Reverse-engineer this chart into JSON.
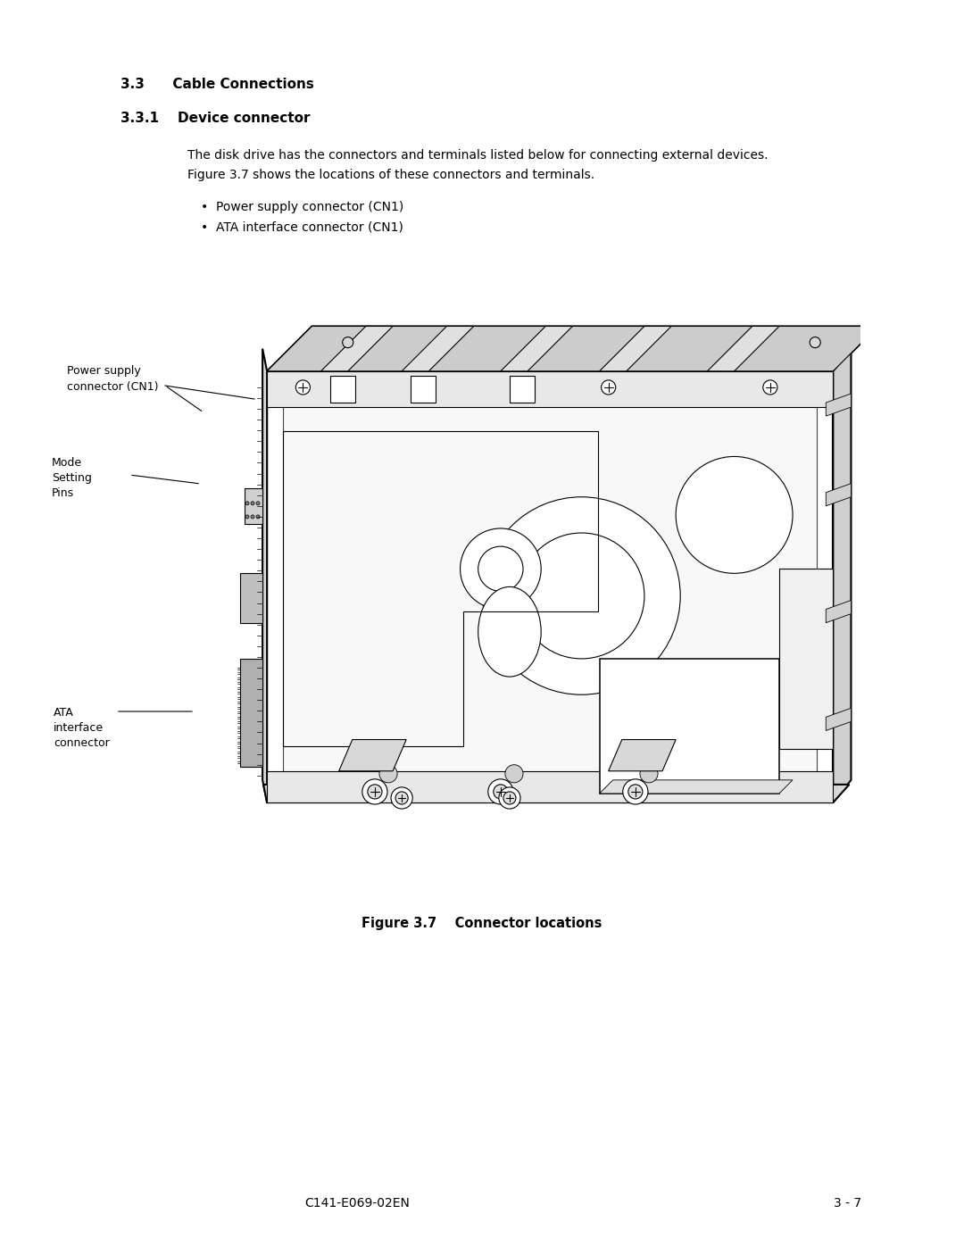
{
  "bg_color": "#ffffff",
  "page_width": 10.8,
  "page_height": 13.97,
  "dpi": 100,
  "section_33_text": "3.3      Cable Connections",
  "section_331_text": "3.3.1    Device connector",
  "body_line1": "The disk drive has the connectors and terminals listed below for connecting external devices.",
  "body_line2": "Figure 3.7 shows the locations of these connectors and terminals.",
  "bullet1_text": "Power supply connector (CN1)",
  "bullet2_text": "ATA interface connector (CN1)",
  "label_power_supply_line1": "Power supply",
  "label_power_supply_line2": "connector (CN1)",
  "label_mode_line1": "Mode",
  "label_mode_line2": "Setting",
  "label_mode_line3": "Pins",
  "label_ata_line1": "ATA",
  "label_ata_line2": "interface",
  "label_ata_line3": "connector",
  "figure_caption": "Figure 3.7    Connector locations",
  "footer_left": "C141-E069-02EN",
  "footer_right": "3 - 7",
  "font_size_section": 11.0,
  "font_size_body": 10.0,
  "font_size_label": 9.0,
  "font_size_caption": 10.5,
  "font_size_footer": 10.0
}
